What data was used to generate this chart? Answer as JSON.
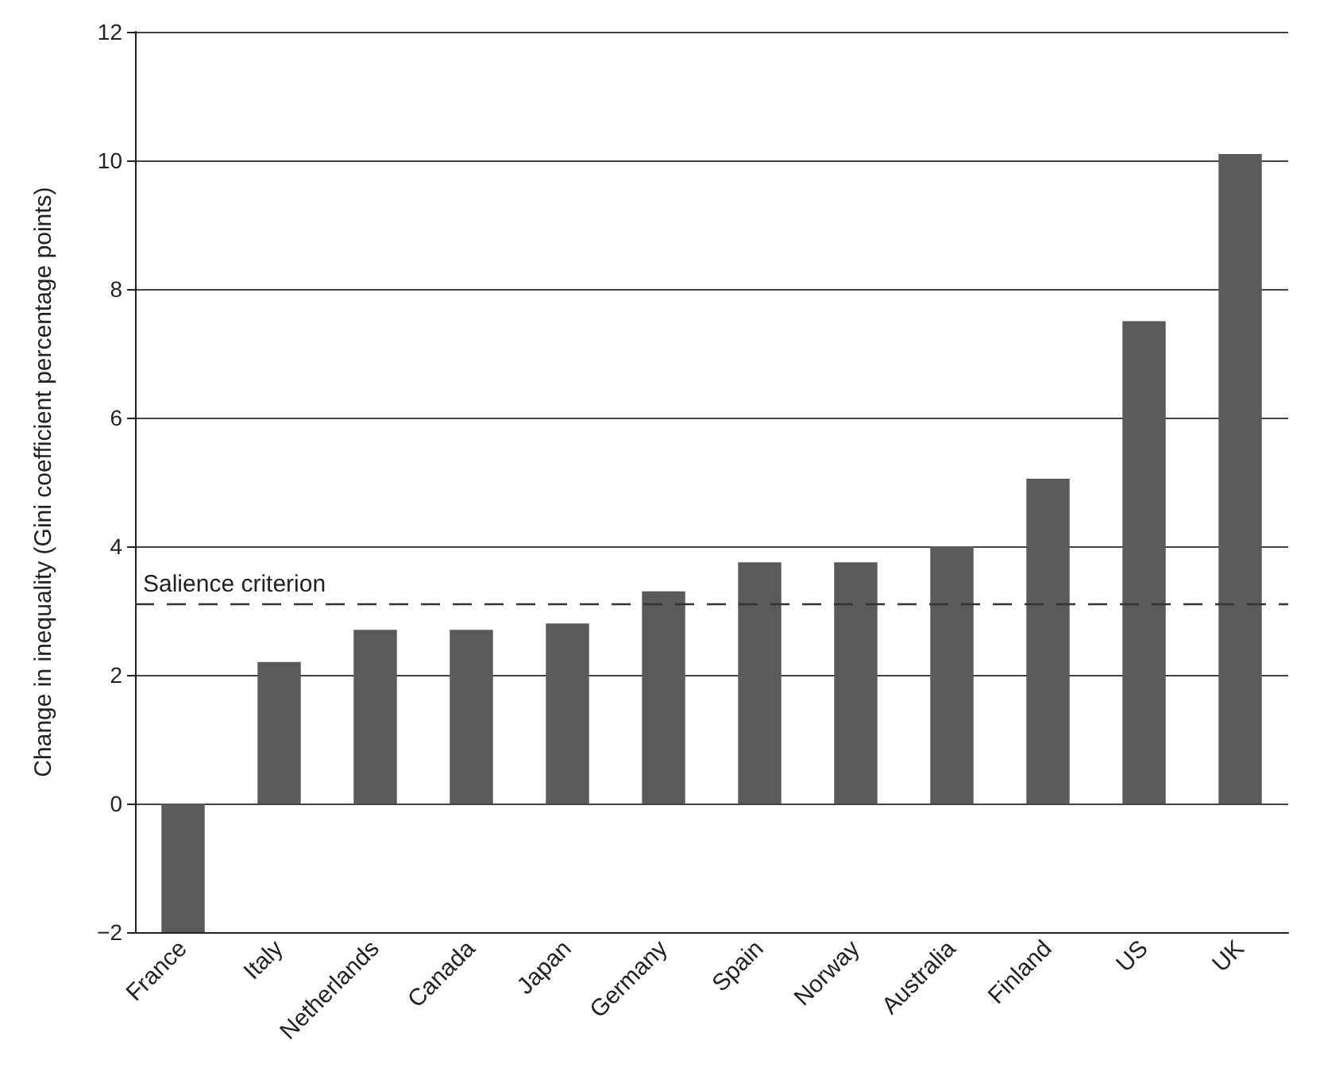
{
  "chart_data": {
    "type": "bar",
    "ylabel": "Change in inequality (Gini coefficient percentage points)",
    "categories": [
      "France",
      "Italy",
      "Netherlands",
      "Canada",
      "Japan",
      "Germany",
      "Spain",
      "Norway",
      "Australia",
      "Finland",
      "US",
      "UK"
    ],
    "values": [
      -2,
      2.2,
      2.7,
      2.7,
      2.8,
      3.3,
      3.75,
      3.75,
      4,
      5.05,
      7.5,
      10.1
    ],
    "color": "#5a5a5a",
    "ylim": [
      -2,
      12
    ],
    "yticks": [
      -2,
      0,
      2,
      4,
      6,
      8,
      10,
      12
    ],
    "grid": "y",
    "ref_lines": [
      {
        "axis": "y",
        "value": 3.1,
        "label": "Salience criterion",
        "line_style": "dashed",
        "color": "#333333"
      }
    ]
  }
}
